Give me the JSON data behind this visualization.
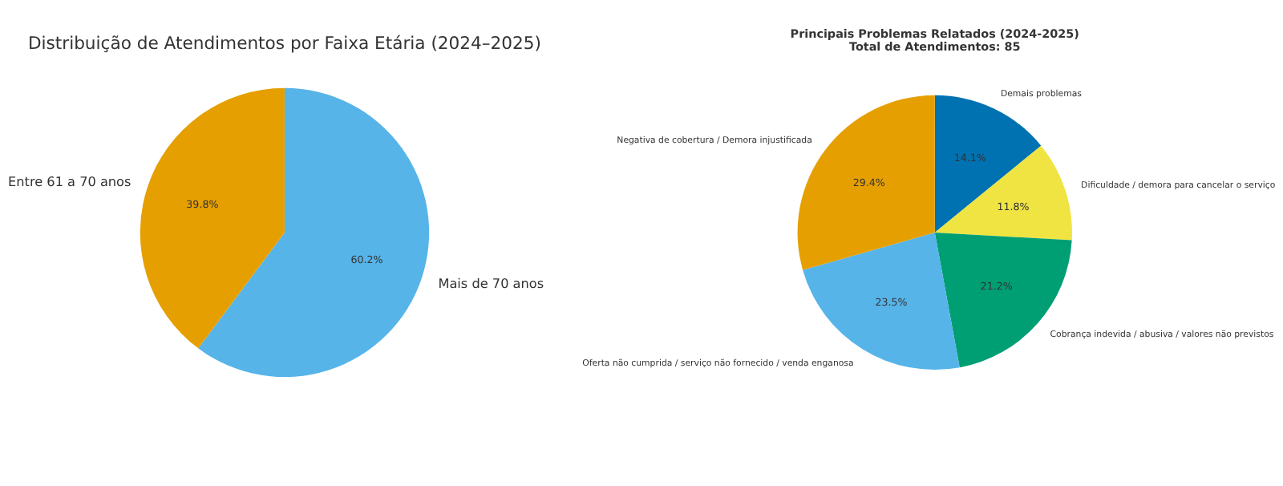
{
  "chart_data": [
    {
      "type": "pie",
      "title": "Distribuição de Atendimentos por Faixa Etária (2024–2025)",
      "categories": [
        "Entre 61 a 70 anos",
        "Mais de 70 anos"
      ],
      "values": [
        39.8,
        60.2
      ],
      "colors": [
        "#e69f00",
        "#56b4e9"
      ],
      "value_labels": [
        "39.8%",
        "60.2%"
      ]
    },
    {
      "type": "pie",
      "title": "Principais Problemas Relatados (2024-2025)",
      "subtitle": "Total de Atendimentos: 85",
      "categories": [
        "Negativa de cobertura / Demora injustificada",
        "Oferta não cumprida / serviço não fornecido / venda enganosa",
        "Cobrança indevida / abusiva / valores não previstos",
        "Dificuldade / demora para cancelar o serviço",
        "Demais problemas"
      ],
      "values": [
        29.4,
        23.5,
        21.2,
        11.8,
        14.1
      ],
      "colors": [
        "#e69f00",
        "#56b4e9",
        "#009e73",
        "#f0e442",
        "#0072b2"
      ],
      "value_labels": [
        "29.4%",
        "23.5%",
        "21.2%",
        "11.8%",
        "14.1%"
      ]
    }
  ]
}
